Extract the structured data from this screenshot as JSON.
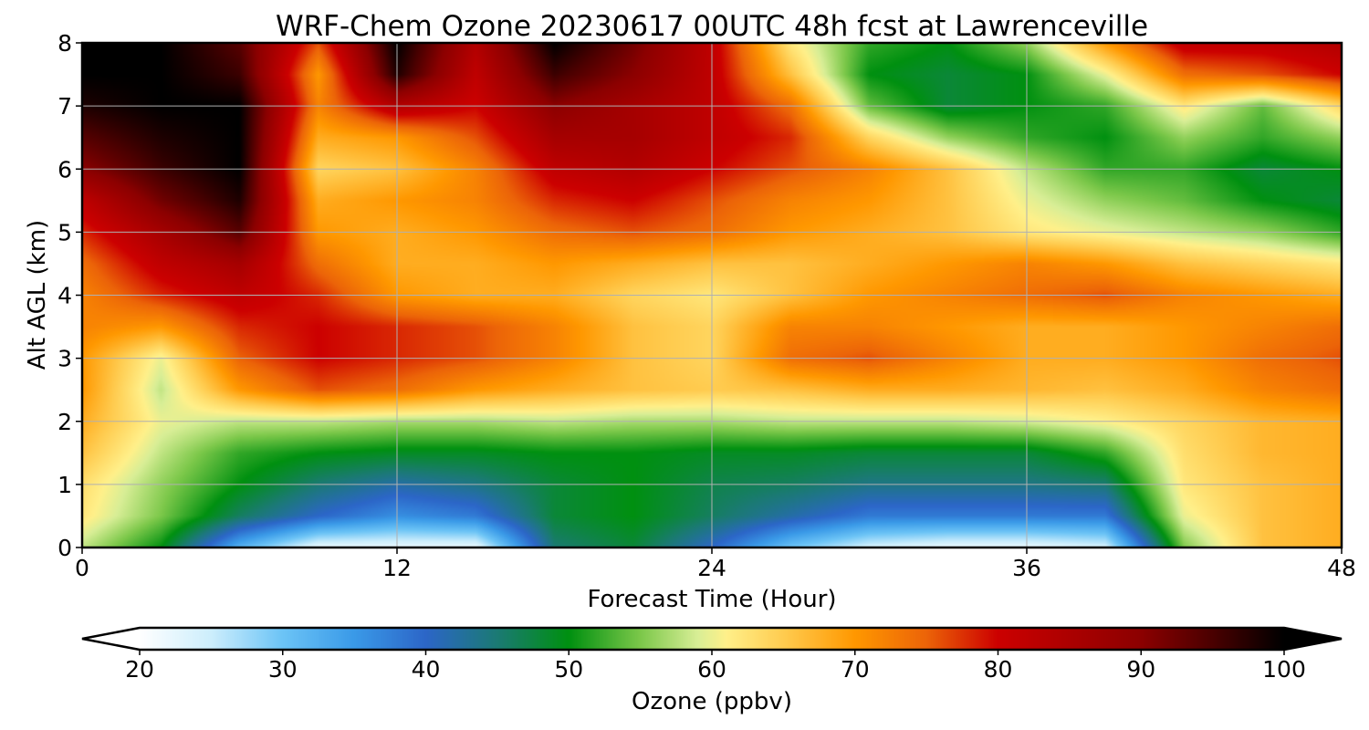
{
  "chart_data": {
    "type": "heatmap",
    "title": "WRF-Chem Ozone  20230617 00UTC 48h fcst at Lawrenceville",
    "xlabel": "Forecast Time (Hour)",
    "ylabel": "Alt AGL (km)",
    "xlim": [
      0,
      48
    ],
    "ylim": [
      0,
      8
    ],
    "x_ticks": [
      0,
      12,
      24,
      36,
      48
    ],
    "y_ticks": [
      0,
      1,
      2,
      3,
      4,
      5,
      6,
      7,
      8
    ],
    "grid": true,
    "x": [
      0,
      3,
      6,
      9,
      12,
      15,
      18,
      21,
      24,
      27,
      30,
      33,
      36,
      39,
      42,
      45,
      48
    ],
    "y": [
      0,
      0.5,
      1,
      1.5,
      2,
      2.5,
      3,
      3.5,
      4,
      4.5,
      5,
      5.5,
      6,
      6.5,
      7,
      7.5,
      8
    ],
    "z": [
      [
        58,
        50,
        32,
        22,
        22,
        22,
        45,
        48,
        40,
        30,
        24,
        22,
        22,
        24,
        55,
        66,
        68
      ],
      [
        62,
        55,
        46,
        40,
        36,
        38,
        48,
        50,
        46,
        42,
        38,
        38,
        38,
        38,
        60,
        66,
        68
      ],
      [
        63,
        56,
        50,
        45,
        42,
        44,
        48,
        50,
        47,
        46,
        44,
        44,
        44,
        45,
        62,
        66,
        68
      ],
      [
        66,
        58,
        52,
        50,
        49,
        49,
        50,
        50,
        49,
        49,
        48,
        48,
        48,
        52,
        63,
        67,
        68
      ],
      [
        68,
        60,
        58,
        58,
        57,
        57,
        58,
        57,
        57,
        58,
        58,
        58,
        59,
        61,
        64,
        67,
        68
      ],
      [
        70,
        58,
        70,
        76,
        74,
        70,
        68,
        66,
        65,
        66,
        68,
        68,
        67,
        66,
        68,
        72,
        74
      ],
      [
        70,
        60,
        75,
        80,
        78,
        76,
        72,
        66,
        64,
        74,
        76,
        72,
        68,
        68,
        70,
        74,
        76
      ],
      [
        72,
        70,
        78,
        80,
        78,
        76,
        72,
        66,
        64,
        72,
        72,
        70,
        68,
        68,
        70,
        72,
        74
      ],
      [
        72,
        78,
        82,
        78,
        70,
        68,
        68,
        64,
        62,
        66,
        70,
        72,
        74,
        76,
        72,
        70,
        68
      ],
      [
        74,
        82,
        86,
        74,
        68,
        68,
        70,
        68,
        66,
        66,
        68,
        70,
        72,
        70,
        66,
        64,
        62
      ],
      [
        78,
        86,
        94,
        70,
        68,
        70,
        74,
        76,
        74,
        70,
        68,
        66,
        62,
        60,
        58,
        56,
        52
      ],
      [
        82,
        92,
        98,
        68,
        70,
        72,
        78,
        80,
        76,
        72,
        70,
        66,
        60,
        56,
        54,
        50,
        48
      ],
      [
        90,
        96,
        100,
        64,
        66,
        72,
        82,
        84,
        80,
        76,
        72,
        66,
        58,
        52,
        52,
        48,
        50
      ],
      [
        94,
        98,
        100,
        68,
        70,
        76,
        86,
        86,
        82,
        78,
        64,
        56,
        52,
        50,
        56,
        52,
        56
      ],
      [
        98,
        100,
        100,
        72,
        84,
        80,
        90,
        86,
        82,
        74,
        54,
        48,
        50,
        52,
        62,
        54,
        64
      ],
      [
        100,
        100,
        96,
        70,
        98,
        82,
        96,
        90,
        82,
        66,
        50,
        48,
        50,
        60,
        74,
        76,
        80
      ],
      [
        100,
        100,
        94,
        76,
        100,
        84,
        100,
        92,
        82,
        62,
        52,
        50,
        56,
        70,
        82,
        82,
        84
      ]
    ],
    "colorbar": {
      "label": "Ozone  (ppbv)",
      "range": [
        20,
        100
      ],
      "ticks": [
        20,
        30,
        40,
        50,
        60,
        70,
        80,
        90,
        100
      ],
      "extend": "both",
      "orientation": "horizontal",
      "placement": "bottom",
      "colors": [
        {
          "value": 20,
          "color": "#ffffff"
        },
        {
          "value": 25,
          "color": "#cdeefc"
        },
        {
          "value": 30,
          "color": "#6cc4f6"
        },
        {
          "value": 35,
          "color": "#3a9ae8"
        },
        {
          "value": 40,
          "color": "#2c66c8"
        },
        {
          "value": 45,
          "color": "#1b7a74"
        },
        {
          "value": 50,
          "color": "#009010"
        },
        {
          "value": 55,
          "color": "#7cc84a"
        },
        {
          "value": 59,
          "color": "#d8ee96"
        },
        {
          "value": 61,
          "color": "#fff08a"
        },
        {
          "value": 65,
          "color": "#ffcc50"
        },
        {
          "value": 70,
          "color": "#ff9800"
        },
        {
          "value": 75,
          "color": "#ec6408"
        },
        {
          "value": 80,
          "color": "#cc0000"
        },
        {
          "value": 90,
          "color": "#8c0000"
        },
        {
          "value": 95,
          "color": "#4a0000"
        },
        {
          "value": 100,
          "color": "#000000"
        }
      ]
    }
  }
}
